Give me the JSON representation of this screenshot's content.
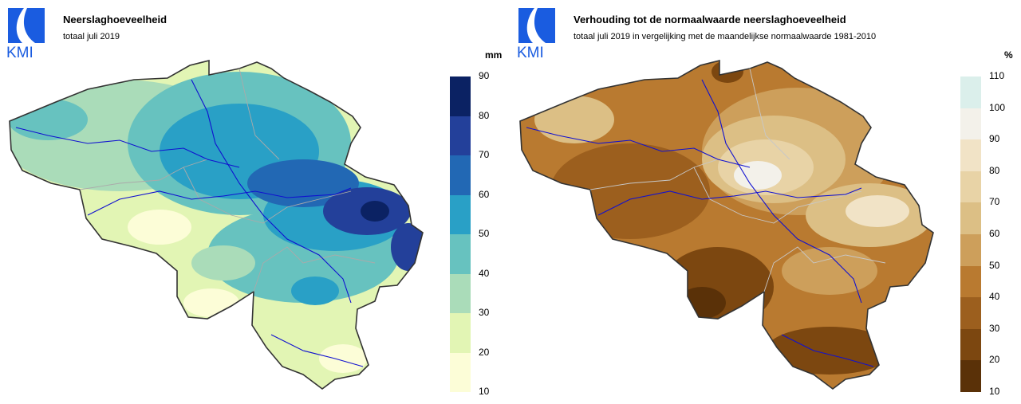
{
  "logo": {
    "text": "KMI",
    "color": "#1a5ce0"
  },
  "left": {
    "title": "Neerslaghoeveelheid",
    "subtitle": "totaal juli 2019",
    "unit": "mm",
    "ticks": [
      "90",
      "80",
      "70",
      "60",
      "50",
      "40",
      "30",
      "20",
      "10"
    ],
    "colors": [
      "#0b2263",
      "#23409a",
      "#2268b4",
      "#29a0c6",
      "#67c2bf",
      "#aadcb9",
      "#e2f5b4",
      "#fcfdd7"
    ]
  },
  "right": {
    "title": "Verhouding tot de normaalwaarde neerslaghoeveelheid",
    "subtitle": "totaal juli 2019 in vergelijking met de maandelijkse normaalwaarde 1981-2010",
    "unit": "%",
    "ticks": [
      "110",
      "100",
      "90",
      "80",
      "70",
      "60",
      "50",
      "40",
      "30",
      "20",
      "10"
    ],
    "colors": [
      "#dbefeb",
      "#f3f1ea",
      "#f1e3c6",
      "#e8d3a6",
      "#dcbf85",
      "#cd9f5b",
      "#b97a30",
      "#9c5f1e",
      "#7c4710",
      "#5a3108"
    ]
  }
}
